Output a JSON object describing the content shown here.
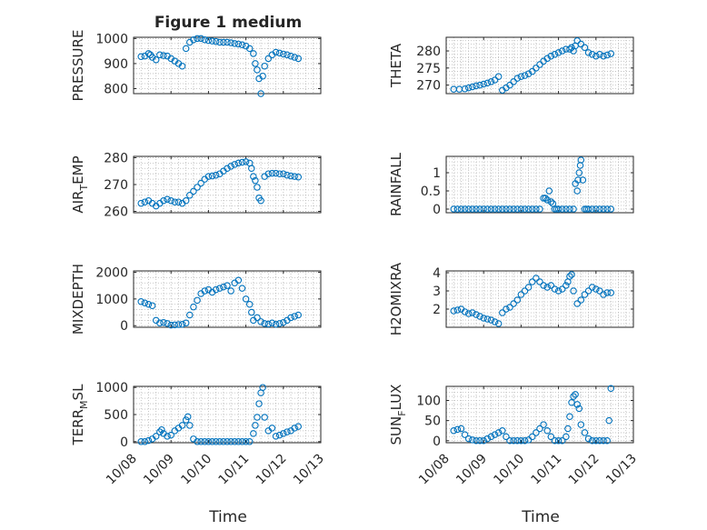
{
  "chart_data": {
    "title": "Figure 1 medium",
    "xlabel": "Time",
    "x_ticks": [
      "10/08",
      "10/09",
      "10/10",
      "10/11",
      "10/12",
      "10/13"
    ],
    "xlim": [
      0,
      5
    ],
    "panels": [
      {
        "id": "pressure",
        "ylabel": "PRESSURE",
        "ylabel_sub": "",
        "ylabel_suffix": "",
        "ylim": [
          780,
          1005
        ],
        "yticks": [
          {
            "v": 800,
            "l": "800"
          },
          {
            "v": 900,
            "l": "900"
          },
          {
            "v": 1000,
            "l": "1000"
          }
        ],
        "x": [
          0.2,
          0.3,
          0.4,
          0.45,
          0.5,
          0.6,
          0.7,
          0.8,
          0.9,
          1.0,
          1.1,
          1.2,
          1.3,
          1.4,
          1.5,
          1.6,
          1.7,
          1.8,
          1.9,
          2.0,
          2.1,
          2.2,
          2.3,
          2.4,
          2.5,
          2.6,
          2.7,
          2.8,
          2.9,
          3.0,
          3.1,
          3.2,
          3.25,
          3.3,
          3.35,
          3.4,
          3.45,
          3.5,
          3.6,
          3.7,
          3.8,
          3.9,
          4.0,
          4.1,
          4.2,
          4.3,
          4.4
        ],
        "y": [
          928,
          930,
          940,
          935,
          925,
          915,
          935,
          932,
          930,
          920,
          910,
          900,
          890,
          960,
          985,
          995,
          1000,
          1000,
          995,
          992,
          990,
          988,
          985,
          985,
          985,
          983,
          980,
          978,
          975,
          970,
          960,
          940,
          900,
          875,
          840,
          780,
          850,
          890,
          920,
          935,
          945,
          942,
          938,
          935,
          930,
          925,
          920
        ]
      },
      {
        "id": "theta",
        "ylabel": "THETA",
        "ylabel_sub": "",
        "ylabel_suffix": "",
        "ylim": [
          267.5,
          284
        ],
        "yticks": [
          {
            "v": 270,
            "l": "270"
          },
          {
            "v": 275,
            "l": "275"
          },
          {
            "v": 280,
            "l": "280"
          }
        ],
        "x": [
          0.2,
          0.35,
          0.5,
          0.6,
          0.7,
          0.8,
          0.9,
          1.0,
          1.1,
          1.2,
          1.3,
          1.4,
          1.5,
          1.6,
          1.7,
          1.8,
          1.9,
          2.0,
          2.1,
          2.2,
          2.3,
          2.4,
          2.5,
          2.6,
          2.7,
          2.8,
          2.9,
          3.0,
          3.1,
          3.2,
          3.3,
          3.35,
          3.4,
          3.45,
          3.5,
          3.6,
          3.7,
          3.8,
          3.9,
          4.0,
          4.1,
          4.2,
          4.3,
          4.4
        ],
        "y": [
          268.8,
          268.8,
          268.9,
          269.2,
          269.5,
          269.8,
          270,
          270.3,
          270.6,
          271,
          271.5,
          272.5,
          268.5,
          269.2,
          270,
          271,
          272,
          272.5,
          272.8,
          273.3,
          274,
          275,
          276,
          277,
          277.8,
          278.5,
          279,
          279.5,
          280,
          280.5,
          280.5,
          281,
          280,
          281.5,
          283,
          282,
          281,
          279.5,
          279,
          278.5,
          279,
          278.5,
          278.8,
          279.2
        ]
      },
      {
        "id": "air_temp",
        "ylabel": "AIR",
        "ylabel_sub": "T",
        "ylabel_suffix": "EMP",
        "ylim": [
          259.5,
          280.5
        ],
        "yticks": [
          {
            "v": 260,
            "l": "260"
          },
          {
            "v": 270,
            "l": "270"
          },
          {
            "v": 280,
            "l": "280"
          }
        ],
        "x": [
          0.2,
          0.3,
          0.4,
          0.5,
          0.6,
          0.7,
          0.8,
          0.9,
          1.0,
          1.1,
          1.2,
          1.3,
          1.4,
          1.5,
          1.6,
          1.7,
          1.8,
          1.9,
          2.0,
          2.1,
          2.2,
          2.3,
          2.4,
          2.5,
          2.6,
          2.7,
          2.8,
          2.9,
          3.0,
          3.1,
          3.15,
          3.2,
          3.25,
          3.3,
          3.35,
          3.4,
          3.5,
          3.6,
          3.7,
          3.8,
          3.9,
          4.0,
          4.1,
          4.2,
          4.3,
          4.4
        ],
        "y": [
          263,
          263.5,
          264,
          263,
          262,
          263,
          264,
          264.5,
          264,
          263.5,
          263.5,
          263,
          264,
          266,
          267.5,
          269,
          270.5,
          272,
          273,
          273.2,
          273.5,
          274,
          275,
          276,
          276.8,
          277.5,
          278,
          278.3,
          278.5,
          278,
          276,
          273,
          271.5,
          269,
          265,
          264,
          273,
          274,
          274.2,
          274.2,
          274,
          274,
          273.5,
          273.2,
          273,
          272.8
        ]
      },
      {
        "id": "rainfall",
        "ylabel": "RAINFALL",
        "ylabel_sub": "",
        "ylabel_suffix": "",
        "ylim": [
          -0.1,
          1.45
        ],
        "yticks": [
          {
            "v": 0,
            "l": "0"
          },
          {
            "v": 0.5,
            "l": "0.5"
          },
          {
            "v": 1,
            "l": "1"
          }
        ],
        "x": [
          0.2,
          0.3,
          0.4,
          0.5,
          0.6,
          0.7,
          0.8,
          0.9,
          1.0,
          1.1,
          1.2,
          1.3,
          1.4,
          1.5,
          1.6,
          1.7,
          1.8,
          1.9,
          2.0,
          2.1,
          2.2,
          2.3,
          2.4,
          2.5,
          2.6,
          2.65,
          2.7,
          2.75,
          2.8,
          2.85,
          2.9,
          2.95,
          3.0,
          3.1,
          3.2,
          3.3,
          3.4,
          3.45,
          3.5,
          3.52,
          3.55,
          3.58,
          3.6,
          3.65,
          3.7,
          3.75,
          3.8,
          3.9,
          4.0,
          4.1,
          4.2,
          4.3,
          4.4
        ],
        "y": [
          0,
          0,
          0,
          0,
          0,
          0,
          0,
          0,
          0,
          0,
          0,
          0,
          0,
          0,
          0,
          0,
          0,
          0,
          0,
          0,
          0,
          0,
          0,
          0,
          0.3,
          0.3,
          0.25,
          0.5,
          0.2,
          0.15,
          0,
          0,
          0,
          0,
          0,
          0,
          0,
          0.7,
          0.5,
          0.8,
          1.0,
          1.2,
          1.35,
          0.8,
          0,
          0,
          0,
          0,
          0,
          0,
          0,
          0,
          0
        ]
      },
      {
        "id": "mixdepth",
        "ylabel": "MIXDEPTH",
        "ylabel_sub": "",
        "ylabel_suffix": "",
        "ylim": [
          -60,
          2050
        ],
        "yticks": [
          {
            "v": 0,
            "l": "0"
          },
          {
            "v": 1000,
            "l": "1000"
          },
          {
            "v": 2000,
            "l": "2000"
          }
        ],
        "x": [
          0.2,
          0.3,
          0.4,
          0.5,
          0.6,
          0.7,
          0.8,
          0.9,
          1.0,
          1.1,
          1.2,
          1.3,
          1.4,
          1.5,
          1.6,
          1.7,
          1.8,
          1.9,
          2.0,
          2.1,
          2.2,
          2.3,
          2.4,
          2.5,
          2.6,
          2.7,
          2.8,
          2.9,
          3.0,
          3.1,
          3.15,
          3.2,
          3.3,
          3.4,
          3.5,
          3.6,
          3.7,
          3.8,
          3.9,
          4.0,
          4.1,
          4.2,
          4.3,
          4.4
        ],
        "y": [
          900,
          850,
          800,
          750,
          200,
          100,
          120,
          80,
          20,
          30,
          40,
          50,
          100,
          400,
          700,
          950,
          1200,
          1300,
          1350,
          1250,
          1350,
          1400,
          1450,
          1500,
          1300,
          1600,
          1700,
          1400,
          1000,
          800,
          500,
          200,
          300,
          150,
          80,
          60,
          100,
          50,
          80,
          120,
          200,
          300,
          350,
          400
        ]
      },
      {
        "id": "h2omixra",
        "ylabel": "H2OMIXRA",
        "ylabel_sub": "",
        "ylabel_suffix": "",
        "ylim": [
          1.0,
          4.1
        ],
        "yticks": [
          {
            "v": 2,
            "l": "2"
          },
          {
            "v": 3,
            "l": "3"
          },
          {
            "v": 4,
            "l": "4"
          }
        ],
        "x": [
          0.2,
          0.3,
          0.4,
          0.5,
          0.6,
          0.7,
          0.8,
          0.9,
          1.0,
          1.1,
          1.2,
          1.3,
          1.4,
          1.5,
          1.6,
          1.7,
          1.8,
          1.9,
          2.0,
          2.1,
          2.2,
          2.3,
          2.4,
          2.5,
          2.6,
          2.7,
          2.8,
          2.9,
          3.0,
          3.1,
          3.2,
          3.25,
          3.3,
          3.35,
          3.4,
          3.5,
          3.6,
          3.7,
          3.8,
          3.9,
          4.0,
          4.1,
          4.2,
          4.3,
          4.4
        ],
        "y": [
          1.9,
          1.95,
          2.0,
          1.85,
          1.75,
          1.8,
          1.7,
          1.6,
          1.5,
          1.45,
          1.4,
          1.3,
          1.2,
          1.8,
          2.0,
          2.1,
          2.3,
          2.5,
          2.8,
          3.0,
          3.2,
          3.5,
          3.7,
          3.5,
          3.3,
          3.2,
          3.3,
          3.1,
          3.0,
          3.1,
          3.3,
          3.5,
          3.8,
          3.9,
          3.0,
          2.3,
          2.5,
          2.8,
          3.0,
          3.2,
          3.1,
          3.0,
          2.8,
          2.9,
          2.9
        ]
      },
      {
        "id": "terr_msl",
        "ylabel": "TERR",
        "ylabel_sub": "M",
        "ylabel_suffix": "SL",
        "ylim": [
          -20,
          1020
        ],
        "yticks": [
          {
            "v": 0,
            "l": "0"
          },
          {
            "v": 500,
            "l": "500"
          },
          {
            "v": 1000,
            "l": "1000"
          }
        ],
        "x": [
          0.2,
          0.3,
          0.4,
          0.5,
          0.6,
          0.7,
          0.75,
          0.8,
          0.9,
          1.0,
          1.1,
          1.2,
          1.3,
          1.4,
          1.45,
          1.5,
          1.6,
          1.7,
          1.8,
          1.9,
          2.0,
          2.1,
          2.2,
          2.3,
          2.4,
          2.5,
          2.6,
          2.7,
          2.8,
          2.9,
          3.0,
          3.1,
          3.2,
          3.25,
          3.3,
          3.35,
          3.4,
          3.45,
          3.5,
          3.6,
          3.7,
          3.8,
          3.9,
          4.0,
          4.1,
          4.2,
          4.3,
          4.4
        ],
        "y": [
          0,
          0,
          20,
          50,
          100,
          180,
          220,
          150,
          100,
          120,
          200,
          250,
          300,
          400,
          460,
          300,
          50,
          0,
          0,
          0,
          0,
          0,
          0,
          0,
          0,
          0,
          0,
          0,
          0,
          0,
          0,
          0,
          150,
          300,
          450,
          700,
          900,
          1000,
          450,
          200,
          250,
          100,
          120,
          150,
          180,
          200,
          250,
          280
        ]
      },
      {
        "id": "sun_flux",
        "ylabel": "SUN",
        "ylabel_sub": "F",
        "ylabel_suffix": "LUX",
        "ylim": [
          -5,
          135
        ],
        "yticks": [
          {
            "v": 0,
            "l": "0"
          },
          {
            "v": 50,
            "l": "50"
          },
          {
            "v": 100,
            "l": "100"
          }
        ],
        "x": [
          0.2,
          0.3,
          0.4,
          0.5,
          0.6,
          0.7,
          0.8,
          0.9,
          1.0,
          1.1,
          1.2,
          1.3,
          1.4,
          1.5,
          1.6,
          1.7,
          1.8,
          1.9,
          2.0,
          2.1,
          2.2,
          2.3,
          2.4,
          2.5,
          2.6,
          2.7,
          2.8,
          2.9,
          3.0,
          3.1,
          3.2,
          3.25,
          3.3,
          3.35,
          3.4,
          3.45,
          3.5,
          3.55,
          3.6,
          3.7,
          3.8,
          3.9,
          4.0,
          4.1,
          4.2,
          4.3,
          4.35,
          4.4
        ],
        "y": [
          25,
          28,
          30,
          15,
          5,
          2,
          0,
          0,
          0,
          5,
          10,
          15,
          20,
          25,
          10,
          0,
          0,
          0,
          0,
          0,
          2,
          10,
          20,
          30,
          40,
          25,
          10,
          0,
          0,
          0,
          10,
          30,
          60,
          95,
          110,
          115,
          90,
          80,
          40,
          20,
          5,
          0,
          0,
          0,
          0,
          0,
          50,
          130
        ]
      }
    ]
  }
}
